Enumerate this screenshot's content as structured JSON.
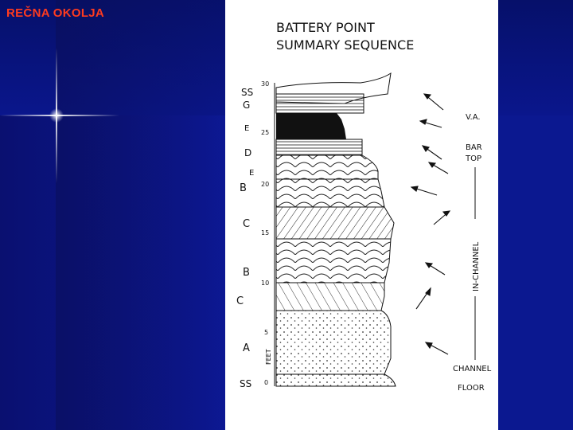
{
  "slide": {
    "title": "REČNA OKOLJA"
  },
  "figure": {
    "title_line1": "BATTERY POINT",
    "title_line2": "SUMMARY SEQUENCE",
    "scale": {
      "ticks": [
        "30",
        "25",
        "20",
        "15",
        "10",
        "5",
        "0"
      ],
      "unit": "FEET"
    },
    "facies": [
      "SS",
      "G",
      "E",
      "D",
      "E",
      "B",
      "C",
      "B",
      "C",
      "A",
      "SS"
    ],
    "annotations": {
      "va": "V.A.",
      "bar_top_1": "BAR",
      "bar_top_2": "TOP",
      "in_channel": "IN-CHANNEL",
      "channel_floor_1": "CHANNEL",
      "channel_floor_2": "FLOOR"
    }
  }
}
